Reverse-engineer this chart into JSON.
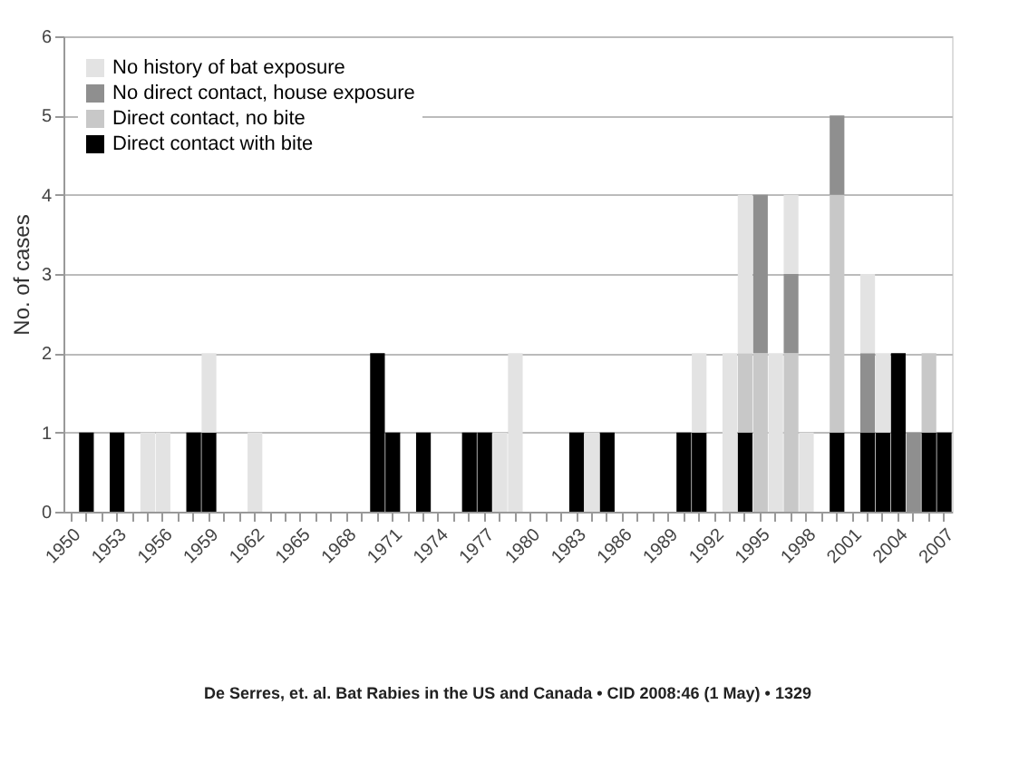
{
  "chart_data": {
    "type": "bar",
    "stacked": true,
    "categories": [
      "1950",
      null,
      null,
      "1953",
      null,
      null,
      "1956",
      null,
      null,
      "1959",
      null,
      null,
      "1962",
      null,
      null,
      "1965",
      null,
      null,
      "1968",
      null,
      null,
      "1971",
      null,
      null,
      "1974",
      null,
      null,
      "1977",
      null,
      null,
      "1980",
      null,
      null,
      "1983",
      null,
      null,
      "1986",
      null,
      null,
      "1989",
      null,
      null,
      "1992",
      null,
      null,
      "1995",
      null,
      null,
      "1998",
      null,
      null,
      "2001",
      null,
      null,
      "2004",
      null,
      null,
      "2007"
    ],
    "series": [
      {
        "name": "Direct contact with bite",
        "color": "#000000",
        "values": [
          0,
          1,
          0,
          1,
          0,
          0,
          0,
          0,
          1,
          1,
          0,
          0,
          0,
          0,
          0,
          0,
          0,
          0,
          0,
          0,
          2,
          1,
          0,
          1,
          0,
          0,
          1,
          1,
          0,
          0,
          0,
          0,
          0,
          1,
          0,
          1,
          0,
          0,
          0,
          0,
          1,
          1,
          0,
          0,
          1,
          0,
          0,
          0,
          0,
          0,
          1,
          0,
          1,
          1,
          2,
          0,
          1,
          1
        ]
      },
      {
        "name": "Direct contact, no bite",
        "color": "#c8c8c8",
        "values": [
          0,
          0,
          0,
          0,
          0,
          0,
          0,
          0,
          0,
          0,
          0,
          0,
          0,
          0,
          0,
          0,
          0,
          0,
          0,
          0,
          0,
          0,
          0,
          0,
          0,
          0,
          0,
          0,
          0,
          0,
          0,
          0,
          0,
          0,
          0,
          0,
          0,
          0,
          0,
          0,
          0,
          0,
          0,
          0,
          1,
          2,
          0,
          2,
          0,
          0,
          3,
          0,
          0,
          0,
          0,
          0,
          1,
          0
        ]
      },
      {
        "name": "No direct contact, house exposure",
        "color": "#8f8f8f",
        "values": [
          0,
          0,
          0,
          0,
          0,
          0,
          0,
          0,
          0,
          0,
          0,
          0,
          0,
          0,
          0,
          0,
          0,
          0,
          0,
          0,
          0,
          0,
          0,
          0,
          0,
          0,
          0,
          0,
          0,
          0,
          0,
          0,
          0,
          0,
          0,
          0,
          0,
          0,
          0,
          0,
          0,
          0,
          0,
          0,
          0,
          2,
          0,
          1,
          0,
          0,
          1,
          0,
          1,
          0,
          0,
          1,
          0,
          0
        ]
      },
      {
        "name": "No history of bat exposure",
        "color": "#e3e3e3",
        "values": [
          0,
          0,
          0,
          0,
          0,
          1,
          1,
          0,
          0,
          1,
          0,
          0,
          1,
          0,
          0,
          0,
          0,
          0,
          0,
          0,
          0,
          0,
          0,
          0,
          0,
          0,
          0,
          0,
          1,
          2,
          0,
          0,
          0,
          0,
          1,
          0,
          0,
          0,
          0,
          0,
          0,
          1,
          0,
          2,
          2,
          0,
          2,
          1,
          1,
          0,
          0,
          0,
          1,
          1,
          0,
          0,
          0,
          0
        ]
      }
    ],
    "ylabel": "No. of cases",
    "ylim": [
      0,
      6
    ],
    "yticks": [
      0,
      1,
      2,
      3,
      4,
      5,
      6
    ],
    "grid": "y",
    "legend": "top left",
    "annotations": [
      "De Serres, et. al. Bat Rabies in the US and Canada • CID 2008:46 (1 May) • 1329"
    ]
  }
}
